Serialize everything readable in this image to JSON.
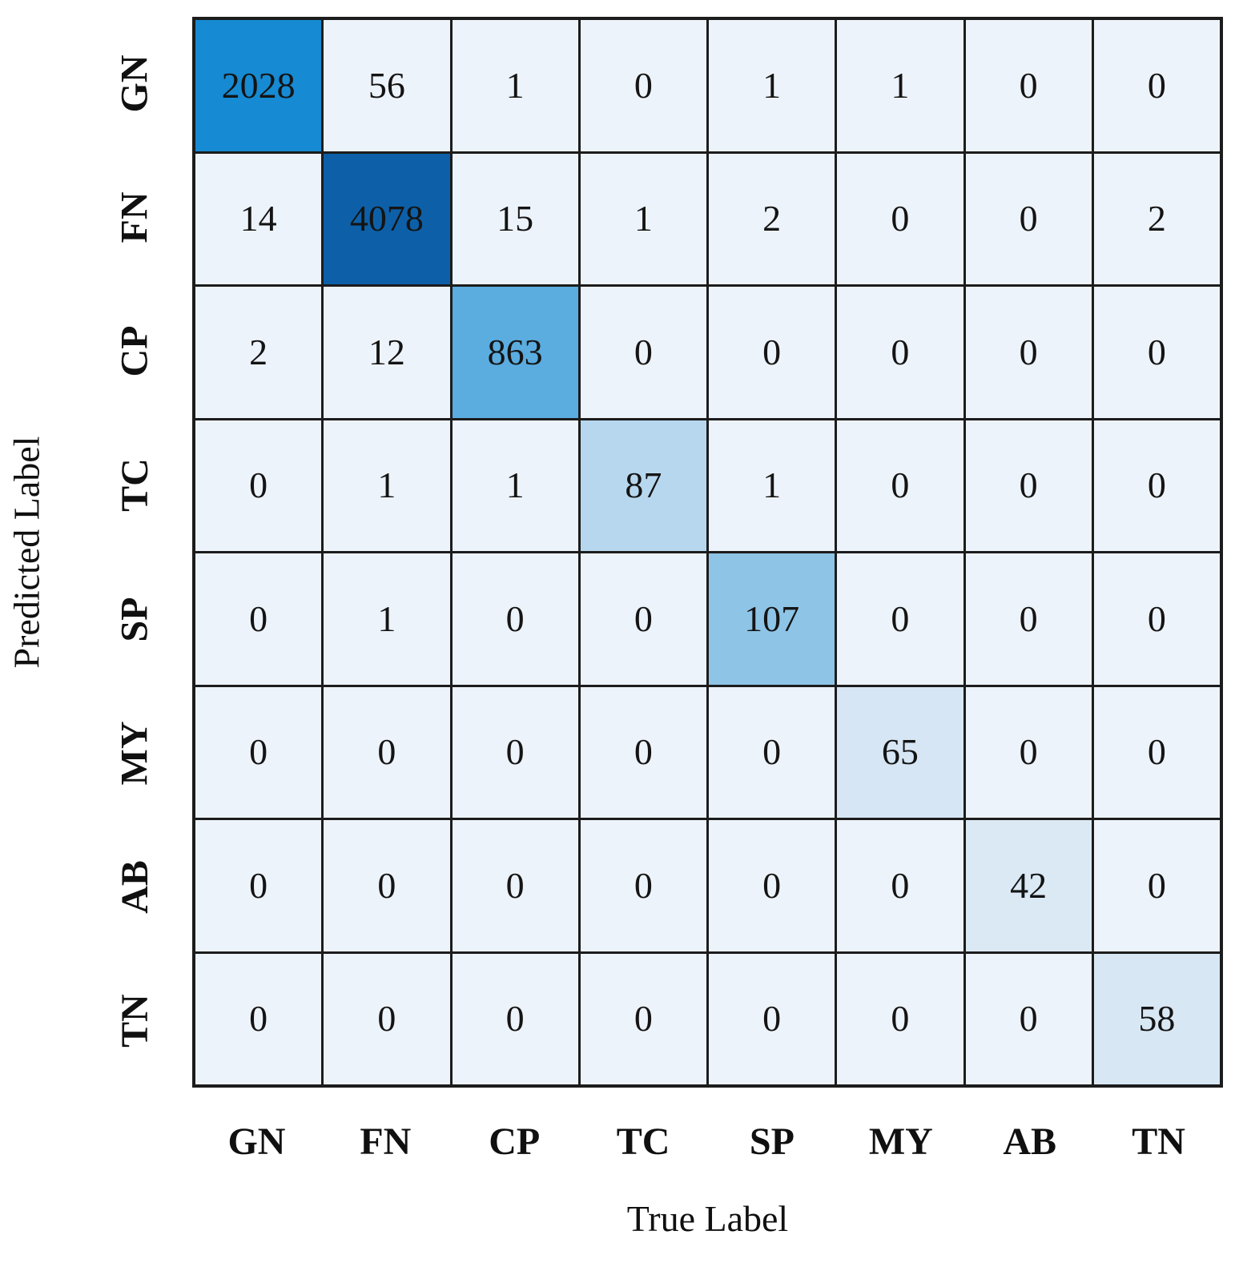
{
  "chart_data": {
    "type": "heatmap",
    "title": "",
    "xlabel": "True Label",
    "ylabel": "Predicted Label",
    "x_categories": [
      "GN",
      "FN",
      "CP",
      "TC",
      "SP",
      "MY",
      "AB",
      "TN"
    ],
    "y_categories": [
      "GN",
      "FN",
      "CP",
      "TC",
      "SP",
      "MY",
      "AB",
      "TN"
    ],
    "matrix": [
      [
        2028,
        56,
        1,
        0,
        1,
        1,
        0,
        0
      ],
      [
        14,
        4078,
        15,
        1,
        2,
        0,
        0,
        2
      ],
      [
        2,
        12,
        863,
        0,
        0,
        0,
        0,
        0
      ],
      [
        0,
        1,
        1,
        87,
        1,
        0,
        0,
        0
      ],
      [
        0,
        1,
        0,
        0,
        107,
        0,
        0,
        0
      ],
      [
        0,
        0,
        0,
        0,
        0,
        65,
        0,
        0
      ],
      [
        0,
        0,
        0,
        0,
        0,
        0,
        42,
        0
      ],
      [
        0,
        0,
        0,
        0,
        0,
        0,
        0,
        58
      ]
    ],
    "value_range": [
      0,
      4078
    ],
    "grid": "on",
    "legend_position": "none",
    "colormap_name": "Blues"
  },
  "colors": {
    "off_diagonal_cell": "#edf3fa",
    "grid_line": "#1c1c1c",
    "cell_text": "#141414",
    "diagonal_cells": [
      "#168ad2",
      "#0d60a7",
      "#5bacdf",
      "#b7d7ee",
      "#8ec4e6",
      "#d6e6f4",
      "#dbe9f5",
      "#d8e7f4"
    ]
  }
}
